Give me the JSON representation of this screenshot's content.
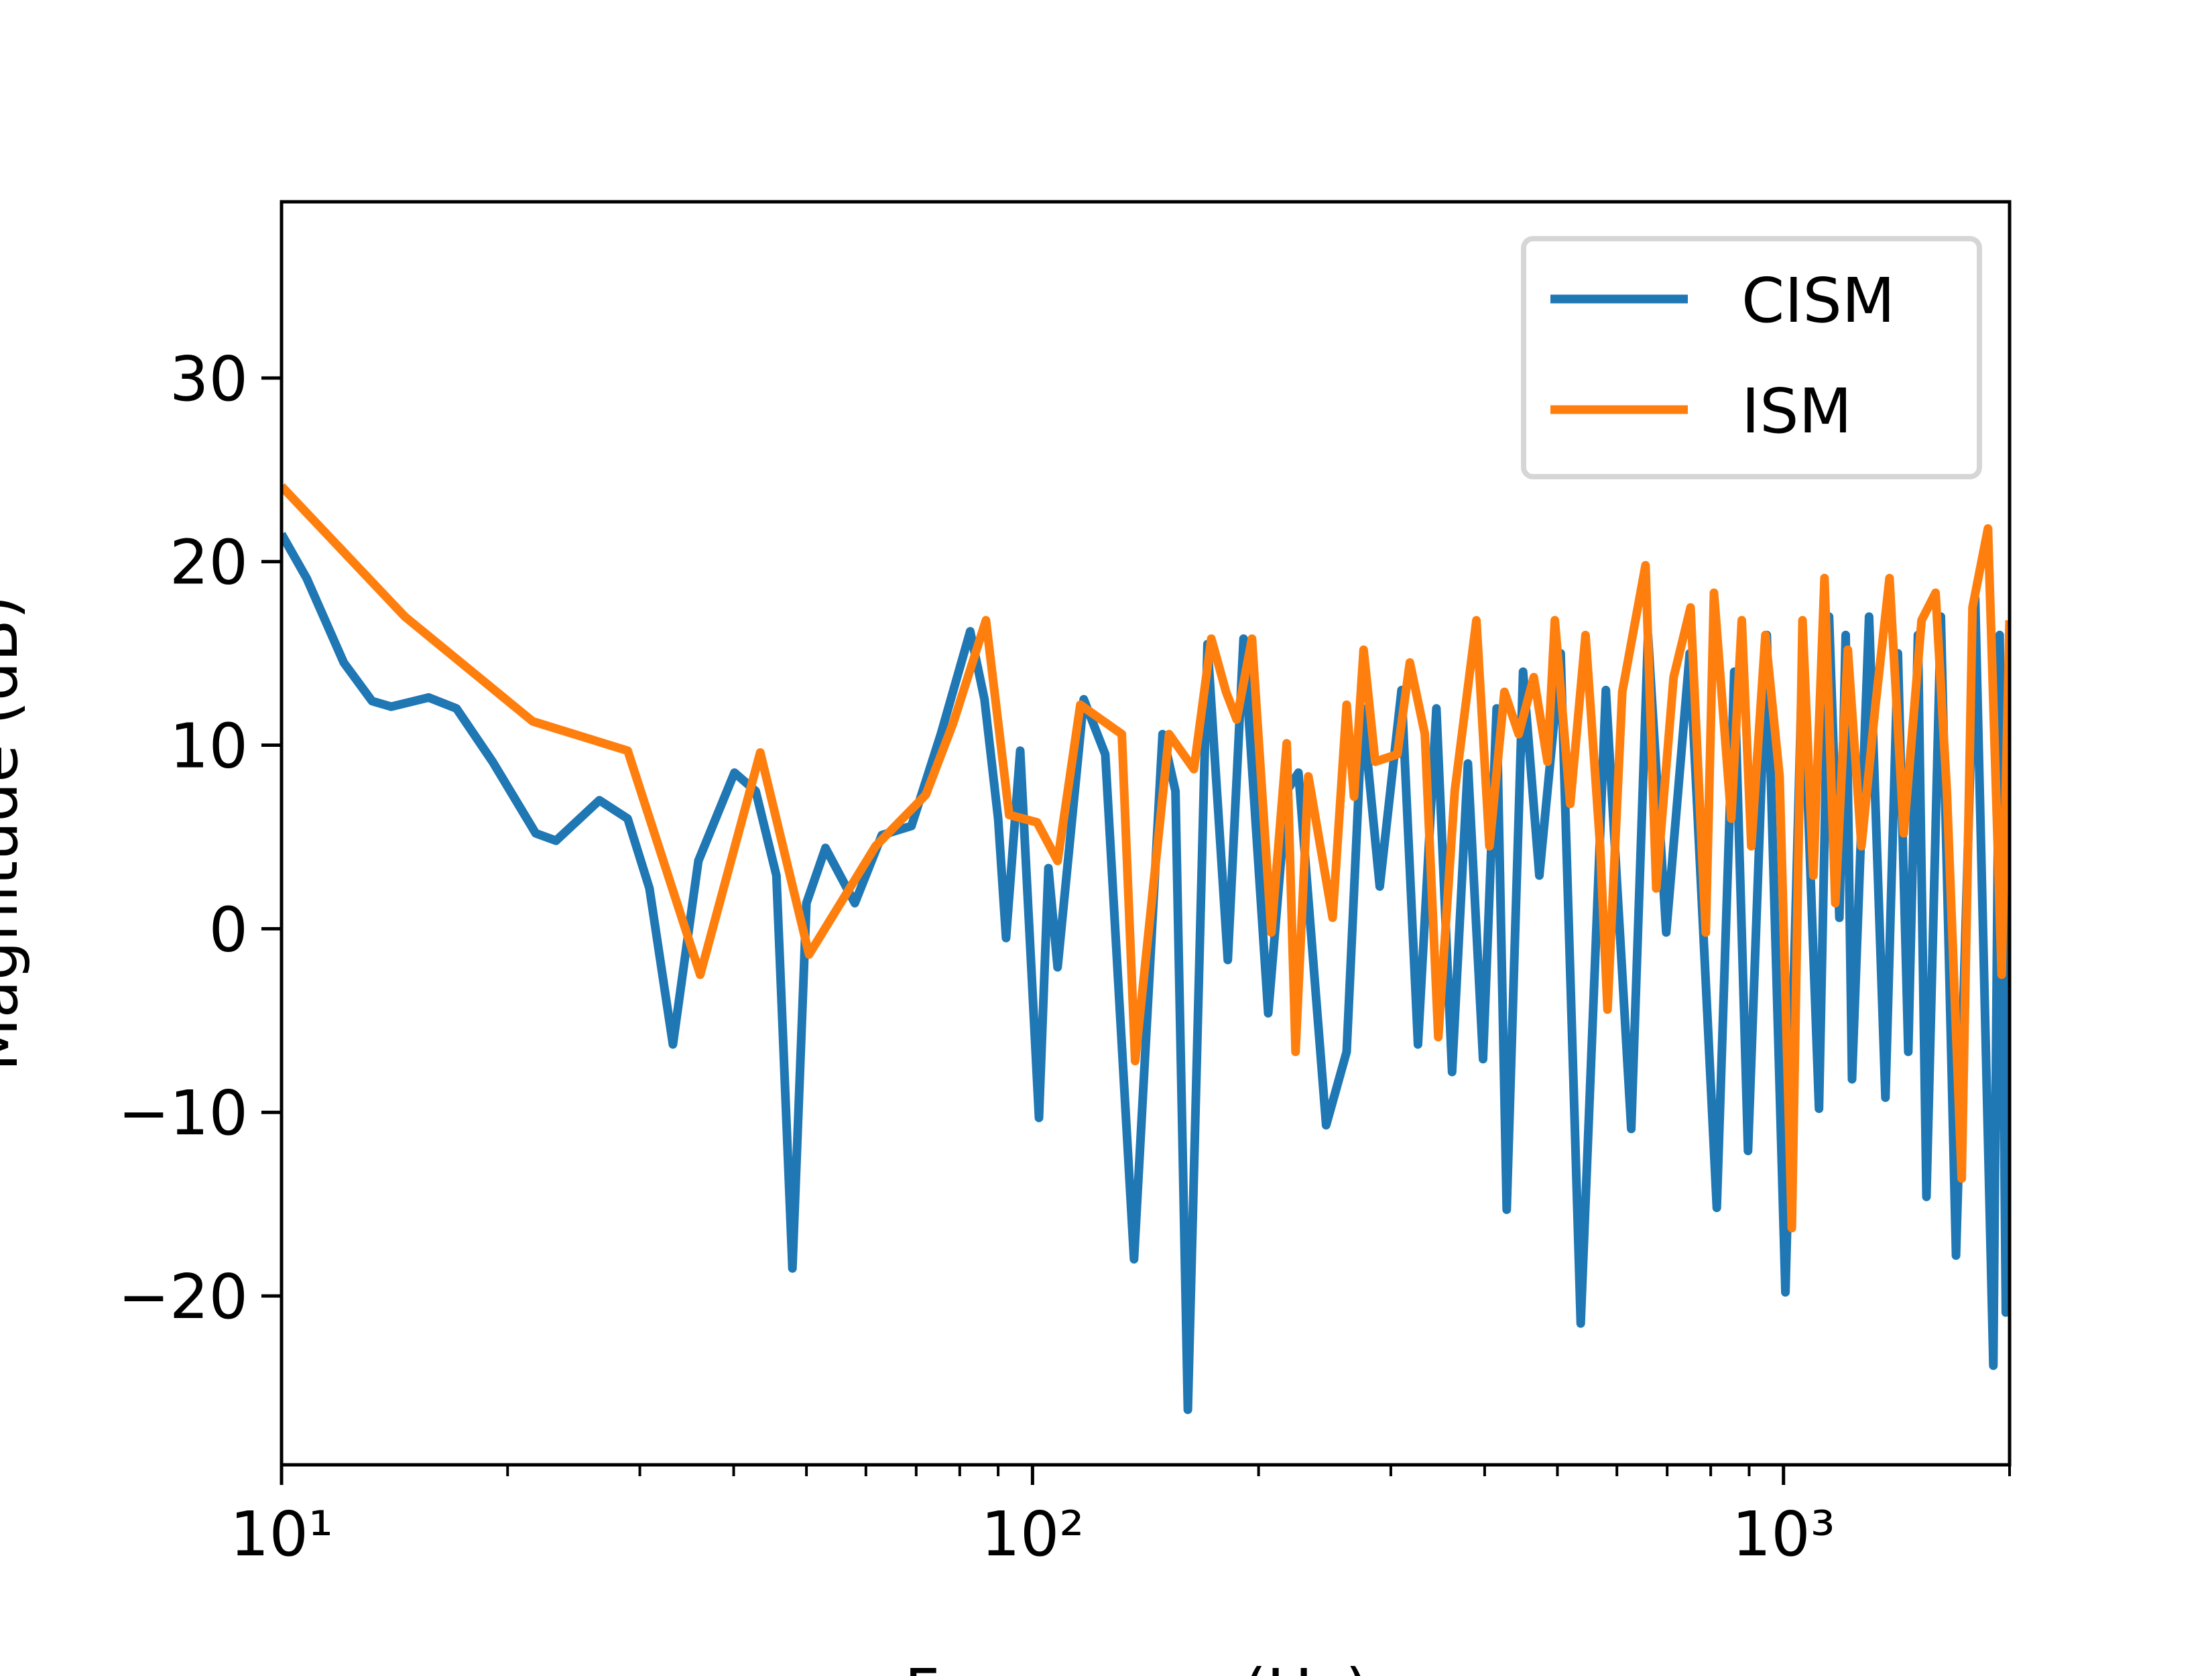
{
  "chart_data": {
    "type": "line",
    "x_label": "Frequency (Hz)",
    "y_label": "Magnitude (dB)",
    "xscale": "log",
    "xlim": [
      10,
      2000
    ],
    "ylim": [
      -29.2,
      39.6
    ],
    "xticks": [
      {
        "value": 10,
        "label": "10¹"
      },
      {
        "value": 100,
        "label": "10²"
      },
      {
        "value": 1000,
        "label": "10³"
      }
    ],
    "xminorticks": [
      20,
      30,
      40,
      50,
      60,
      70,
      80,
      90,
      200,
      300,
      400,
      500,
      600,
      700,
      800,
      900,
      2000
    ],
    "yticks": [
      -20,
      -10,
      0,
      10,
      20,
      30
    ],
    "legend": "upper right",
    "series": [
      {
        "name": "CISM",
        "color": "#1f77b4",
        "x": [
          10,
          10.8,
          12.1,
          13.2,
          14,
          15.7,
          17.1,
          19.1,
          21.8,
          23.2,
          26.5,
          28.9,
          30.9,
          33.2,
          35.9,
          40.1,
          42.8,
          45.6,
          47.9,
          50,
          53,
          58,
          63,
          69,
          75.5,
          82.6,
          86.3,
          90,
          92.2,
          96.3,
          102,
          105,
          108,
          117,
          125,
          136.5,
          149,
          155,
          161,
          171,
          182,
          191,
          206,
          218,
          226,
          246,
          262,
          275,
          290,
          310,
          326,
          345,
          362,
          380,
          398,
          415,
          428,
          450,
          473,
          505,
          537,
          580,
          627,
          660,
          698,
          750,
          815,
          860,
          897,
          950,
          1006,
          1060,
          1115,
          1150,
          1187,
          1210,
          1234,
          1300,
          1367,
          1420,
          1466,
          1510,
          1550,
          1620,
          1697,
          1800,
          1903,
          1940,
          1977,
          2000
        ],
        "values": [
          21.5,
          19.1,
          14.5,
          12.4,
          12.1,
          12.6,
          12,
          9.1,
          5.2,
          4.8,
          7,
          6,
          2.2,
          -6.3,
          3.7,
          8.5,
          7.5,
          2.9,
          -18.5,
          1.4,
          4.4,
          1.4,
          5.1,
          5.6,
          10.6,
          16.2,
          12.5,
          6,
          -0.5,
          9.7,
          -10.3,
          3.3,
          -2.1,
          12.5,
          9.5,
          -18,
          10.6,
          7.5,
          -26.2,
          15.5,
          -1.7,
          15.8,
          -4.6,
          7.5,
          8.5,
          -10.7,
          -6.7,
          12,
          2.3,
          13,
          -6.3,
          12,
          -7.8,
          9,
          -7.1,
          12,
          -15.3,
          14,
          2.9,
          15,
          -21.5,
          13,
          -10.9,
          16,
          -0.2,
          15,
          -15.2,
          14,
          -12.1,
          16,
          -19.8,
          15,
          -9.8,
          17,
          0.6,
          16,
          -8.2,
          17,
          -9.2,
          15,
          -6.7,
          16,
          -14.6,
          17,
          -17.8,
          18,
          -23.8,
          16,
          -20.9,
          15.6
        ]
      },
      {
        "name": "ISM",
        "color": "#ff7f0e",
        "x": [
          10,
          14.6,
          21.6,
          28.9,
          36.1,
          43.4,
          50.4,
          61.8,
          72.1,
          78.4,
          86.7,
          93.1,
          101.4,
          108,
          115.8,
          131.5,
          137,
          152,
          164,
          173,
          181,
          187,
          196,
          208,
          218,
          224,
          233,
          251,
          262,
          268,
          276,
          286,
          306,
          318,
          333,
          347,
          365,
          390,
          406,
          425,
          444,
          465,
          485,
          496,
          520,
          545,
          570,
          583,
          610,
          655,
          677,
          714,
          752,
          788,
          808,
          852,
          880,
          906,
          946,
          988,
          1026,
          1060,
          1096,
          1134,
          1172,
          1218,
          1270,
          1326,
          1384,
          1446,
          1527,
          1594,
          1650,
          1727,
          1785,
          1872,
          1952,
          2000
        ],
        "values": [
          24.1,
          17,
          11.3,
          9.7,
          -2.5,
          9.6,
          -1.4,
          4.5,
          7.3,
          11.2,
          16.8,
          6.2,
          5.8,
          3.7,
          12.2,
          10.6,
          -7.2,
          10.6,
          8.7,
          15.8,
          12.9,
          11.4,
          15.8,
          -0.2,
          10.1,
          -6.7,
          8.3,
          0.6,
          12.2,
          7.2,
          15.2,
          9.1,
          9.5,
          14.5,
          10.6,
          -5.9,
          7.5,
          16.8,
          4.5,
          12.9,
          10.6,
          13.7,
          9.1,
          16.8,
          6.8,
          16,
          4.5,
          -4.4,
          12.9,
          19.8,
          2.2,
          13.7,
          17.5,
          -0.2,
          18.3,
          6,
          16.8,
          4.5,
          16,
          8.3,
          -16.3,
          16.8,
          2.9,
          19.1,
          1.4,
          15.2,
          4.5,
          12.2,
          19.1,
          5.2,
          16.8,
          18.3,
          7.5,
          -13.6,
          17.5,
          21.8,
          -2.5,
          16.8
        ]
      }
    ]
  }
}
